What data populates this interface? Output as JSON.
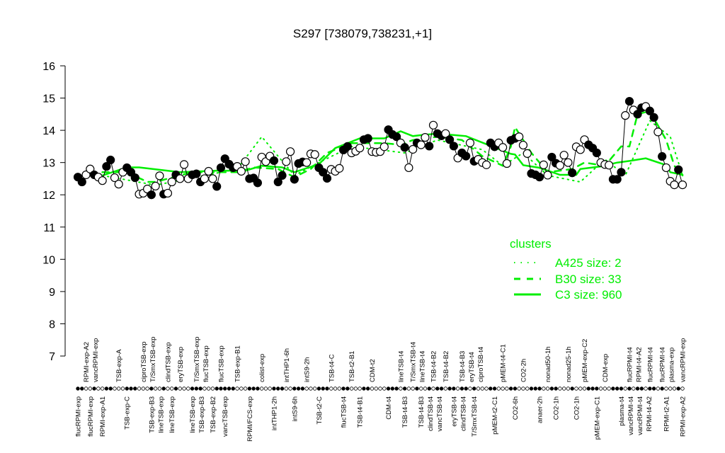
{
  "chart_data": {
    "type": "line",
    "title": "S297 [738079,738231,+1]",
    "xlabel": "",
    "ylabel": "",
    "ylim": [
      7,
      16
    ],
    "yticks": [
      7,
      8,
      9,
      10,
      11,
      12,
      13,
      14,
      15,
      16
    ],
    "grid": false,
    "legend": {
      "placement": "right",
      "title": "clusters",
      "entries": [
        {
          "label": "A425 size: 2",
          "style": "dotted"
        },
        {
          "label": "B30 size: 33",
          "style": "dashed"
        },
        {
          "label": "C3 size: 960",
          "style": "solid"
        }
      ]
    },
    "colors": {
      "points": "#000000",
      "clusters": "#00ee00"
    },
    "points": [
      [
        12.55,
        1
      ],
      [
        12.4,
        1
      ],
      [
        12.62,
        0
      ],
      [
        12.8,
        0
      ],
      [
        12.62,
        1
      ],
      [
        12.55,
        0
      ],
      [
        12.44,
        0
      ],
      [
        12.88,
        1
      ],
      [
        13.08,
        1
      ],
      [
        12.53,
        0
      ],
      [
        12.33,
        0
      ],
      [
        12.7,
        0
      ],
      [
        12.84,
        1
      ],
      [
        12.7,
        1
      ],
      [
        12.53,
        1
      ],
      [
        12.02,
        0
      ],
      [
        12.05,
        0
      ],
      [
        12.18,
        0
      ],
      [
        12.0,
        1
      ],
      [
        12.27,
        0
      ],
      [
        12.59,
        0
      ],
      [
        12.02,
        1
      ],
      [
        12.05,
        0
      ],
      [
        12.4,
        0
      ],
      [
        12.62,
        1
      ],
      [
        12.5,
        0
      ],
      [
        12.94,
        0
      ],
      [
        12.5,
        0
      ],
      [
        12.62,
        1
      ],
      [
        12.65,
        1
      ],
      [
        12.4,
        1
      ],
      [
        12.5,
        0
      ],
      [
        12.73,
        0
      ],
      [
        12.5,
        0
      ],
      [
        12.26,
        1
      ],
      [
        12.84,
        1
      ],
      [
        13.12,
        1
      ],
      [
        12.95,
        1
      ],
      [
        12.84,
        1
      ],
      [
        12.88,
        0
      ],
      [
        12.73,
        0
      ],
      [
        13.03,
        0
      ],
      [
        12.5,
        1
      ],
      [
        12.52,
        1
      ],
      [
        12.37,
        1
      ],
      [
        13.17,
        0
      ],
      [
        13.03,
        0
      ],
      [
        13.2,
        0
      ],
      [
        13.06,
        1
      ],
      [
        12.4,
        1
      ],
      [
        12.6,
        1
      ],
      [
        13.03,
        0
      ],
      [
        13.34,
        0
      ],
      [
        12.48,
        1
      ],
      [
        12.97,
        1
      ],
      [
        13.02,
        1
      ],
      [
        13.0,
        0
      ],
      [
        13.27,
        0
      ],
      [
        13.25,
        0
      ],
      [
        12.84,
        1
      ],
      [
        12.7,
        1
      ],
      [
        12.51,
        1
      ],
      [
        12.79,
        0
      ],
      [
        12.73,
        0
      ],
      [
        12.82,
        0
      ],
      [
        13.39,
        1
      ],
      [
        13.5,
        1
      ],
      [
        13.3,
        0
      ],
      [
        13.35,
        0
      ],
      [
        13.45,
        0
      ],
      [
        13.71,
        1
      ],
      [
        13.75,
        1
      ],
      [
        13.34,
        0
      ],
      [
        13.32,
        0
      ],
      [
        13.34,
        0
      ],
      [
        13.49,
        0
      ],
      [
        14.02,
        1
      ],
      [
        13.87,
        1
      ],
      [
        13.8,
        1
      ],
      [
        13.61,
        0
      ],
      [
        13.47,
        1
      ],
      [
        12.84,
        0
      ],
      [
        13.41,
        0
      ],
      [
        13.61,
        1
      ],
      [
        13.55,
        0
      ],
      [
        13.78,
        0
      ],
      [
        13.51,
        1
      ],
      [
        14.16,
        0
      ],
      [
        13.9,
        1
      ],
      [
        13.83,
        1
      ],
      [
        13.9,
        0
      ],
      [
        13.71,
        1
      ],
      [
        13.51,
        1
      ],
      [
        13.14,
        0
      ],
      [
        13.3,
        1
      ],
      [
        13.2,
        1
      ],
      [
        13.61,
        0
      ],
      [
        13.04,
        1
      ],
      [
        13.1,
        0
      ],
      [
        13.0,
        0
      ],
      [
        12.93,
        0
      ],
      [
        13.61,
        1
      ],
      [
        13.49,
        1
      ],
      [
        13.61,
        0
      ],
      [
        13.47,
        0
      ],
      [
        12.97,
        0
      ],
      [
        13.69,
        1
      ],
      [
        13.75,
        1
      ],
      [
        13.8,
        0
      ],
      [
        13.54,
        0
      ],
      [
        13.28,
        0
      ],
      [
        12.66,
        1
      ],
      [
        12.62,
        1
      ],
      [
        12.55,
        1
      ],
      [
        12.93,
        0
      ],
      [
        12.61,
        0
      ],
      [
        13.17,
        1
      ],
      [
        12.98,
        1
      ],
      [
        12.91,
        0
      ],
      [
        13.23,
        0
      ],
      [
        13.0,
        0
      ],
      [
        12.68,
        1
      ],
      [
        13.49,
        0
      ],
      [
        13.4,
        0
      ],
      [
        13.71,
        0
      ],
      [
        13.55,
        1
      ],
      [
        13.45,
        1
      ],
      [
        13.3,
        1
      ],
      [
        13.0,
        0
      ],
      [
        12.94,
        0
      ],
      [
        12.92,
        0
      ],
      [
        12.48,
        1
      ],
      [
        12.48,
        1
      ],
      [
        12.7,
        1
      ],
      [
        14.46,
        0
      ],
      [
        14.9,
        1
      ],
      [
        14.63,
        0
      ],
      [
        14.5,
        1
      ],
      [
        14.7,
        1
      ],
      [
        14.74,
        0
      ],
      [
        14.6,
        1
      ],
      [
        14.4,
        1
      ],
      [
        13.95,
        0
      ],
      [
        13.19,
        1
      ],
      [
        12.84,
        0
      ],
      [
        12.42,
        0
      ],
      [
        12.31,
        0
      ],
      [
        12.78,
        1
      ],
      [
        12.31,
        0
      ]
    ],
    "clusters": {
      "A425": [
        [
          7,
          12.6
        ],
        [
          20,
          12.3
        ],
        [
          40,
          12.8
        ],
        [
          46,
          13.8
        ],
        [
          50,
          13.2
        ],
        [
          54,
          12.6
        ],
        [
          60,
          13.0
        ],
        [
          68,
          13.5
        ],
        [
          81,
          13.3
        ],
        [
          89,
          13.7
        ],
        [
          100,
          13.4
        ],
        [
          105,
          12.9
        ],
        [
          110,
          13.3
        ],
        [
          116,
          12.6
        ],
        [
          124,
          12.4
        ],
        [
          130,
          13.1
        ],
        [
          135,
          12.6
        ],
        [
          141,
          14.3
        ],
        [
          146,
          13.8
        ],
        [
          149,
          12.6
        ]
      ],
      "B30": [
        [
          7,
          12.7
        ],
        [
          13,
          12.7
        ],
        [
          18,
          12.4
        ],
        [
          20,
          12.4
        ],
        [
          29,
          12.7
        ],
        [
          40,
          12.7
        ],
        [
          44,
          12.85
        ],
        [
          50,
          12.8
        ],
        [
          54,
          12.55
        ],
        [
          58,
          12.8
        ],
        [
          62,
          13.3
        ],
        [
          68,
          13.6
        ],
        [
          76,
          13.6
        ],
        [
          80,
          13.55
        ],
        [
          83,
          13.7
        ],
        [
          89,
          13.8
        ],
        [
          95,
          13.7
        ],
        [
          100,
          13.2
        ],
        [
          105,
          12.9
        ],
        [
          107,
          13.5
        ],
        [
          108,
          14.1
        ],
        [
          112,
          13.3
        ],
        [
          116,
          12.7
        ],
        [
          122,
          12.8
        ],
        [
          125,
          13.0
        ],
        [
          130,
          12.9
        ],
        [
          134,
          13.5
        ],
        [
          136,
          13.5
        ],
        [
          138,
          14.5
        ],
        [
          141,
          14.6
        ],
        [
          145,
          13.7
        ],
        [
          147,
          12.9
        ],
        [
          149,
          12.6
        ]
      ],
      "C3": [
        [
          7,
          12.6
        ],
        [
          13,
          12.85
        ],
        [
          16,
          12.85
        ],
        [
          26,
          12.7
        ],
        [
          35,
          12.75
        ],
        [
          42,
          12.75
        ],
        [
          46,
          12.9
        ],
        [
          51,
          12.85
        ],
        [
          54,
          12.7
        ],
        [
          60,
          12.95
        ],
        [
          64,
          13.45
        ],
        [
          70,
          13.75
        ],
        [
          76,
          13.75
        ],
        [
          80,
          13.97
        ],
        [
          83,
          13.82
        ],
        [
          85,
          13.85
        ],
        [
          89,
          13.9
        ],
        [
          96,
          13.82
        ],
        [
          103,
          13.47
        ],
        [
          107,
          13.27
        ],
        [
          108,
          13.25
        ],
        [
          110,
          12.92
        ],
        [
          114,
          12.84
        ],
        [
          119,
          12.62
        ],
        [
          123,
          12.62
        ],
        [
          124,
          12.8
        ],
        [
          129,
          12.88
        ],
        [
          133,
          13.0
        ],
        [
          136,
          13.05
        ],
        [
          140,
          13.13
        ],
        [
          145,
          12.92
        ],
        [
          146,
          12.7
        ],
        [
          149,
          12.62
        ]
      ]
    },
    "top_labels": [
      [
        "RPMI-exp-A2",
        3
      ],
      [
        "vancRPMI-exp",
        5
      ],
      [
        "TSB-exp-A",
        11
      ],
      [
        "ciproTSB-exp",
        17
      ],
      [
        "T/SmxTSB-exp",
        19
      ],
      [
        "clindTSB-exp",
        23
      ],
      [
        "eryTSB-exp",
        26
      ],
      [
        "T/SmxTSB-exp",
        30
      ],
      [
        "flucTSB-exp",
        32
      ],
      [
        "flucTSB-exp",
        36
      ],
      [
        "TSB-exp-B1",
        40
      ],
      [
        "colist-exp",
        46
      ],
      [
        "intTHP1-6h",
        52
      ],
      [
        "intS9-2h",
        57
      ],
      [
        "TSB-t4-C",
        63
      ],
      [
        "TSB-t2-B1",
        68
      ],
      [
        "CDM-t2",
        73
      ],
      [
        "lineTSB-t4",
        80
      ],
      [
        "T/SmxTSB-t4",
        83
      ],
      [
        "lineTSB-t4",
        85
      ],
      [
        "TSB-t4-B2",
        88
      ],
      [
        "TSB-t4-B2",
        91
      ],
      [
        "TSB-t4-B3",
        95
      ],
      [
        "eryTSB-t4",
        97
      ],
      [
        "ciproTSB-t4",
        99
      ],
      [
        "pMEM-t4-C1",
        105
      ],
      [
        "CO2-2h",
        110
      ],
      [
        "nonad50-1h",
        116
      ],
      [
        "nonad25-1h",
        121
      ],
      [
        "pMEM-exp-C2",
        125
      ],
      [
        "CDM-exp",
        130
      ],
      [
        "flucRPMI-t4",
        136
      ],
      [
        "RPMI-t4-A2",
        137
      ],
      [
        "flucRPMI-t4",
        141
      ],
      [
        "flucRPMI-t4",
        144
      ],
      [
        "plasma-exp",
        146
      ],
      [
        "vancRPMI-exp",
        150
      ]
    ],
    "bottom_labels": [
      [
        "flucRPMI-exp",
        1
      ],
      [
        "flucRPMI-exp",
        4
      ],
      [
        "RPMI-exp-A1",
        7
      ],
      [
        "TSB-exp-C",
        13
      ],
      [
        "TSB-exp-B3",
        19
      ],
      [
        "lineTSB-exp",
        21
      ],
      [
        "lineTSB-exp",
        24
      ],
      [
        "lineTSB-exp",
        29
      ],
      [
        "TSB-exp-B3",
        30
      ],
      [
        "TSB-exp-B2",
        34
      ],
      [
        "vancTSB-exp",
        37
      ],
      [
        "RPMI/FCS-exp",
        43
      ],
      [
        "intTHP1-2h",
        49
      ],
      [
        "intS9-6h",
        54
      ],
      [
        "TSB-t2-C",
        60
      ],
      [
        "flucTSB-t4",
        66
      ],
      [
        "TSB-t4-B1",
        70
      ],
      [
        "CDM-t4",
        77
      ],
      [
        "TSB-t4-B3",
        81
      ],
      [
        "TSB-t4-B3",
        85
      ],
      [
        "clindTSB-t4",
        87
      ],
      [
        "vancTSB-t4",
        89
      ],
      [
        "eryTSB-t4",
        93
      ],
      [
        "clindTSB-t4",
        95
      ],
      [
        "T/SmxTSB-t4",
        98
      ],
      [
        "pMEM-t2-C1",
        103
      ],
      [
        "CO2-6h",
        108
      ],
      [
        "anaer-2h",
        114
      ],
      [
        "CO2-1h",
        118
      ],
      [
        "CO2-1h",
        123
      ],
      [
        "pMEM-exp-C1",
        128
      ],
      [
        "plasma-t4",
        134
      ],
      [
        "vancRPMI-t4",
        136
      ],
      [
        "vancRPMI-t4",
        138
      ],
      [
        "RPMI-t4-A2",
        140
      ],
      [
        "RPMI-t2-A1",
        145
      ],
      [
        "RPMI-exp-A2",
        149
      ]
    ]
  }
}
